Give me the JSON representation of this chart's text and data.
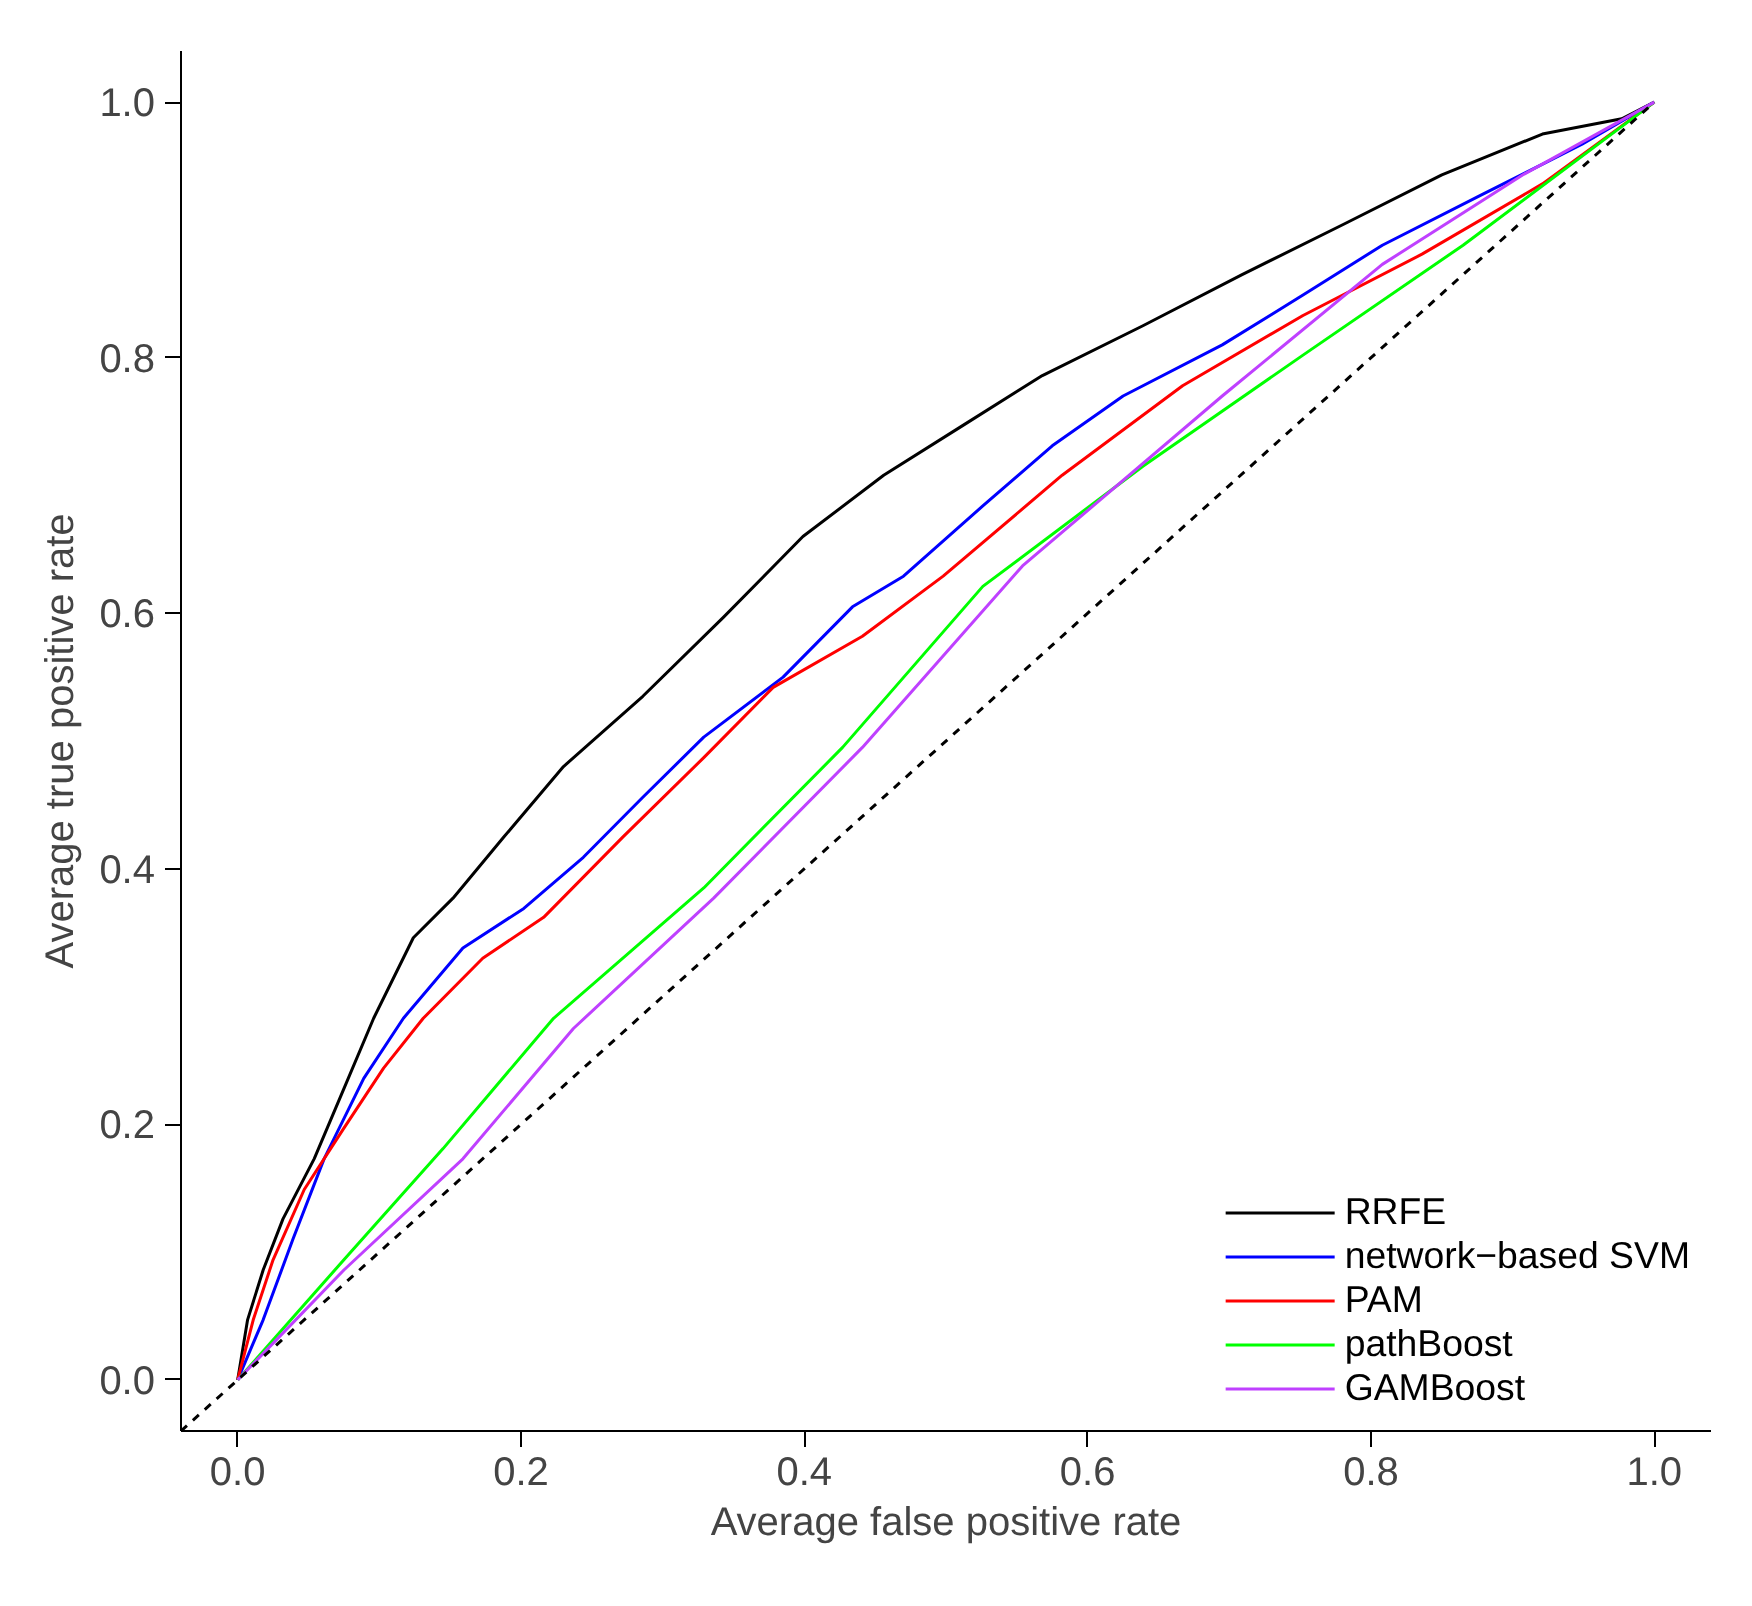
{
  "chart_data": {
    "type": "line",
    "xlabel": "Average false positive rate",
    "ylabel": "Average true positive rate",
    "xlim": [
      -0.04,
      1.04
    ],
    "ylim": [
      -0.04,
      1.04
    ],
    "xticks": [
      {
        "value": 0,
        "label": "0.0"
      },
      0.2,
      0.4,
      0.6,
      0.8,
      {
        "value": 1,
        "label": "1.0"
      }
    ],
    "yticks": [
      {
        "value": 0,
        "label": "0.0"
      },
      0.2,
      0.4,
      0.6,
      0.8,
      {
        "value": 1,
        "label": "1.0"
      }
    ],
    "grid": false,
    "legend": "bottom right",
    "line_style": "solid",
    "marker": "none",
    "series": [
      {
        "name": "RRFE",
        "color": "#000000",
        "x": [
          0,
          0.007,
          0.018,
          0.032,
          0.054,
          0.075,
          0.096,
          0.124,
          0.152,
          0.188,
          0.23,
          0.286,
          0.343,
          0.399,
          0.456,
          0.512,
          0.568,
          0.639,
          0.709,
          0.78,
          0.85,
          0.921,
          0.977,
          1
        ],
        "values": [
          0,
          0.047,
          0.086,
          0.126,
          0.173,
          0.228,
          0.283,
          0.346,
          0.377,
          0.425,
          0.48,
          0.535,
          0.597,
          0.66,
          0.708,
          0.747,
          0.786,
          0.825,
          0.865,
          0.904,
          0.943,
          0.975,
          0.987,
          1
        ]
      },
      {
        "name": "network−based SVM",
        "color": "#0000ff",
        "x": [
          0,
          0.018,
          0.039,
          0.061,
          0.089,
          0.117,
          0.159,
          0.202,
          0.244,
          0.286,
          0.329,
          0.385,
          0.434,
          0.47,
          0.526,
          0.575,
          0.625,
          0.695,
          0.752,
          0.808,
          0.879,
          0.949,
          1
        ],
        "values": [
          0,
          0.047,
          0.11,
          0.173,
          0.236,
          0.283,
          0.338,
          0.369,
          0.409,
          0.456,
          0.503,
          0.55,
          0.605,
          0.629,
          0.684,
          0.731,
          0.77,
          0.81,
          0.849,
          0.888,
          0.928,
          0.967,
          1
        ]
      },
      {
        "name": "PAM",
        "color": "#ff0000",
        "x": [
          0,
          0.011,
          0.025,
          0.047,
          0.075,
          0.103,
          0.131,
          0.173,
          0.216,
          0.272,
          0.329,
          0.378,
          0.441,
          0.498,
          0.582,
          0.667,
          0.752,
          0.836,
          0.921,
          1
        ],
        "values": [
          0,
          0.047,
          0.094,
          0.149,
          0.197,
          0.244,
          0.283,
          0.33,
          0.362,
          0.425,
          0.487,
          0.542,
          0.582,
          0.629,
          0.708,
          0.778,
          0.833,
          0.881,
          0.936,
          1
        ]
      },
      {
        "name": "pathBoost",
        "color": "#00ff00",
        "x": [
          0,
          0.075,
          0.145,
          0.223,
          0.329,
          0.427,
          0.526,
          0.639,
          0.752,
          0.865,
          1
        ],
        "values": [
          0,
          0.094,
          0.181,
          0.283,
          0.385,
          0.495,
          0.621,
          0.715,
          0.802,
          0.888,
          1
        ]
      },
      {
        "name": "GAMBoost",
        "color": "#bf40ff",
        "x": [
          0,
          0.075,
          0.159,
          0.237,
          0.336,
          0.441,
          0.554,
          0.695,
          0.808,
          0.907,
          1
        ],
        "values": [
          0,
          0.086,
          0.173,
          0.275,
          0.377,
          0.495,
          0.637,
          0.77,
          0.873,
          0.943,
          1
        ]
      },
      {
        "color": "#000000",
        "line_style": "dashed",
        "x": [
          -0.04,
          1
        ],
        "values": [
          -0.04,
          1
        ]
      }
    ]
  }
}
